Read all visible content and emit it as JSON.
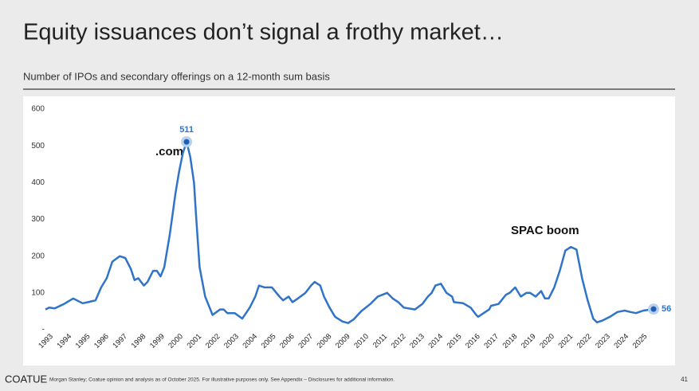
{
  "chart_data": {
    "type": "line",
    "title": "Equity issuances don’t signal a frothy market…",
    "subtitle": "Number of IPOs and secondary offerings on a 12-month sum basis",
    "annotations": [
      ".com",
      "SPAC boom"
    ],
    "footer": {
      "brand": "COATUE",
      "source": "Morgan Stanley; Coatue opinion and analysis as of October 2025. For illustrative purposes only.  See Appendix – Disclosures for additional information.",
      "page": "41"
    },
    "color": "#2f74c8",
    "x": [
      1993.0,
      1993.2,
      1993.5,
      1994.0,
      1994.5,
      1995.0,
      1995.3,
      1995.7,
      1996.0,
      1996.3,
      1996.6,
      1997.0,
      1997.3,
      1997.6,
      1997.8,
      1998.0,
      1998.3,
      1998.5,
      1998.8,
      1999.0,
      1999.2,
      1999.4,
      1999.7,
      2000.0,
      2000.2,
      2000.4,
      2000.6,
      2000.8,
      2001.0,
      2001.1,
      2001.3,
      2001.6,
      2002.0,
      2002.4,
      2002.6,
      2002.8,
      2003.2,
      2003.6,
      2004.0,
      2004.3,
      2004.5,
      2004.8,
      2005.2,
      2005.6,
      2005.8,
      2006.1,
      2006.3,
      2006.6,
      2007.0,
      2007.3,
      2007.5,
      2007.8,
      2008.0,
      2008.3,
      2008.6,
      2009.0,
      2009.3,
      2009.6,
      2010.0,
      2010.5,
      2010.9,
      2011.4,
      2011.7,
      2012.0,
      2012.3,
      2012.9,
      2013.3,
      2013.6,
      2013.8,
      2014.0,
      2014.3,
      2014.6,
      2014.9,
      2015.0,
      2015.5,
      2015.9,
      2016.2,
      2016.3,
      2016.6,
      2016.9,
      2017.0,
      2017.4,
      2017.8,
      2018.0,
      2018.3,
      2018.6,
      2018.9,
      2019.1,
      2019.4,
      2019.7,
      2019.9,
      2020.1,
      2020.4,
      2020.7,
      2021.0,
      2021.3,
      2021.6,
      2021.9,
      2022.2,
      2022.5,
      2022.7,
      2023.0,
      2023.4,
      2023.8,
      2024.2,
      2024.5,
      2024.8,
      2025.2,
      2025.75
    ],
    "values": [
      55,
      60,
      58,
      70,
      85,
      72,
      75,
      80,
      115,
      140,
      185,
      200,
      195,
      165,
      135,
      140,
      120,
      130,
      160,
      160,
      145,
      170,
      260,
      370,
      430,
      480,
      511,
      470,
      400,
      320,
      170,
      90,
      40,
      55,
      55,
      45,
      45,
      30,
      60,
      90,
      120,
      115,
      115,
      90,
      80,
      90,
      75,
      85,
      100,
      120,
      130,
      120,
      90,
      60,
      35,
      22,
      18,
      28,
      50,
      70,
      90,
      100,
      85,
      75,
      60,
      55,
      70,
      90,
      100,
      120,
      125,
      100,
      90,
      75,
      72,
      60,
      40,
      35,
      45,
      55,
      65,
      70,
      95,
      100,
      115,
      90,
      100,
      100,
      90,
      105,
      85,
      85,
      115,
      160,
      215,
      225,
      218,
      140,
      80,
      30,
      20,
      25,
      35,
      48,
      52,
      48,
      45,
      52,
      56
    ],
    "xlim": [
      1993,
      2025.75
    ],
    "xticks": [
      1993,
      1994,
      1995,
      1996,
      1997,
      1998,
      1999,
      2000,
      2001,
      2002,
      2003,
      2004,
      2005,
      2006,
      2007,
      2008,
      2009,
      2010,
      2011,
      2012,
      2013,
      2014,
      2015,
      2016,
      2017,
      2018,
      2019,
      2020,
      2021,
      2022,
      2023,
      2024,
      2025
    ],
    "ylim": [
      0,
      600
    ],
    "yticks": [
      {
        "value": 0,
        "label": "-"
      },
      100,
      200,
      300,
      400,
      500,
      600
    ]
  }
}
